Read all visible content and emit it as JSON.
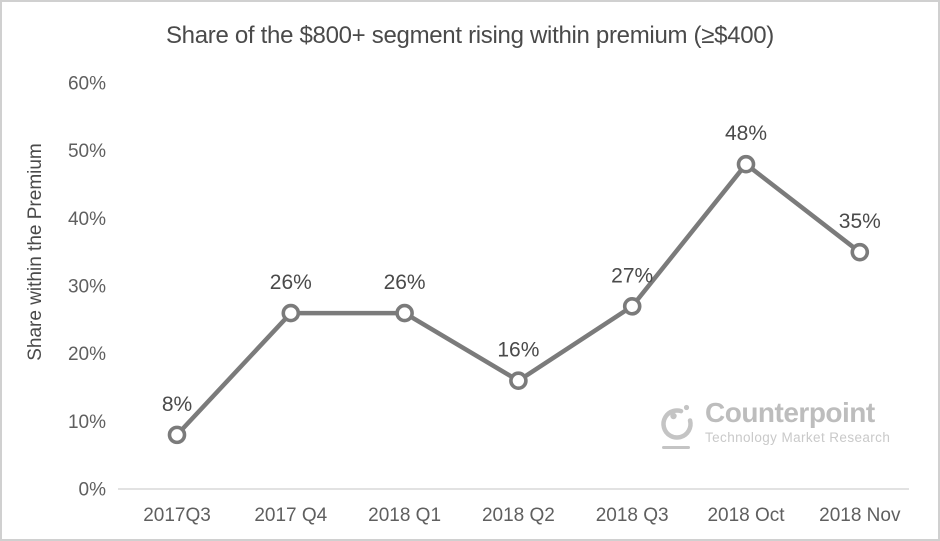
{
  "chart_data": {
    "type": "line",
    "title": "Share of the $800+ segment rising within premium (≥$400)",
    "ylabel": "Share within the Premium",
    "xlabel": "",
    "categories": [
      "2017Q3",
      "2017 Q4",
      "2018 Q1",
      "2018 Q2",
      "2018 Q3",
      "2018 Oct",
      "2018 Nov"
    ],
    "values": [
      8,
      26,
      26,
      16,
      27,
      48,
      35
    ],
    "data_labels": [
      "8%",
      "26%",
      "26%",
      "16%",
      "27%",
      "48%",
      "35%"
    ],
    "ylim": [
      0,
      60
    ],
    "yticks": [
      0,
      10,
      20,
      30,
      40,
      50,
      60
    ],
    "ytick_labels": [
      "0%",
      "10%",
      "20%",
      "30%",
      "40%",
      "50%",
      "60%"
    ],
    "grid": "off",
    "legend": "none",
    "marker": "open-circle",
    "colors": {
      "line": "#7b7b7b",
      "marker_fill": "#ffffff",
      "data_label": "#4a4a4a",
      "tick_label": "#5f5f5f",
      "axis_line": "#d9d9d9",
      "title": "#4a4a4a"
    }
  },
  "branding": {
    "name": "Counterpoint",
    "tagline": "Technology Market Research",
    "color": "#c4c4c4"
  }
}
